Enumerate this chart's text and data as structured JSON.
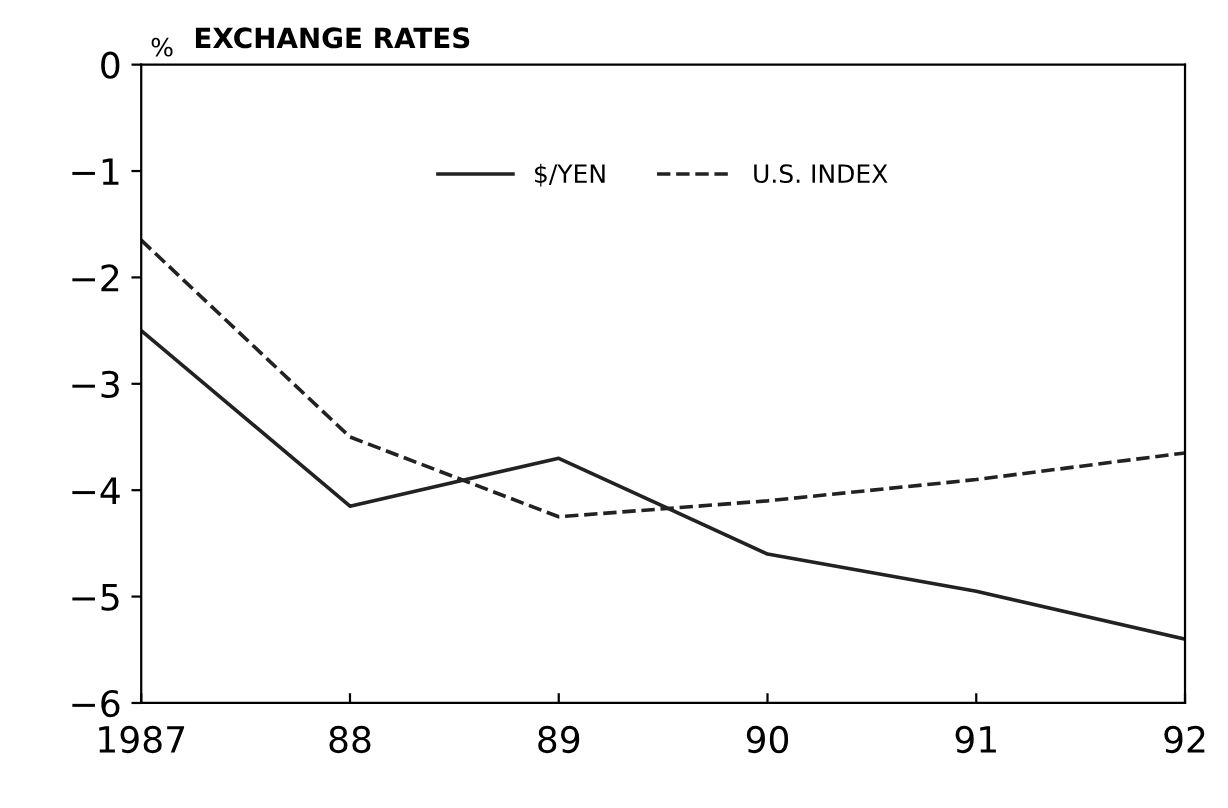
{
  "chart_data": {
    "type": "line",
    "title": "EXCHANGE RATES",
    "ylabel": "%",
    "x": [
      1987,
      1988,
      1989,
      1990,
      1991,
      1992
    ],
    "series": [
      {
        "name": "$/YEN",
        "color": "#222222",
        "line_style": "solid",
        "values": [
          -2.5,
          -4.15,
          -3.7,
          -4.6,
          -4.95,
          -5.4
        ]
      },
      {
        "name": "U.S. INDEX",
        "color": "#222222",
        "line_style": "dashed",
        "values": [
          -1.65,
          -3.5,
          -4.25,
          -4.1,
          -3.9,
          -3.65
        ]
      }
    ],
    "xlim": [
      1987,
      1992
    ],
    "xticks": [
      1987,
      {
        "value": 1988,
        "label": "88"
      },
      {
        "value": 1989,
        "label": "89"
      },
      {
        "value": 1990,
        "label": "90"
      },
      {
        "value": 1991,
        "label": "91"
      },
      {
        "value": 1992,
        "label": "92"
      }
    ],
    "ylim": [
      -6,
      0
    ],
    "yticks": [
      -6,
      -5,
      -4,
      -3,
      -2,
      -1,
      0
    ],
    "legend": "top",
    "grid": false,
    "marker": "none"
  }
}
